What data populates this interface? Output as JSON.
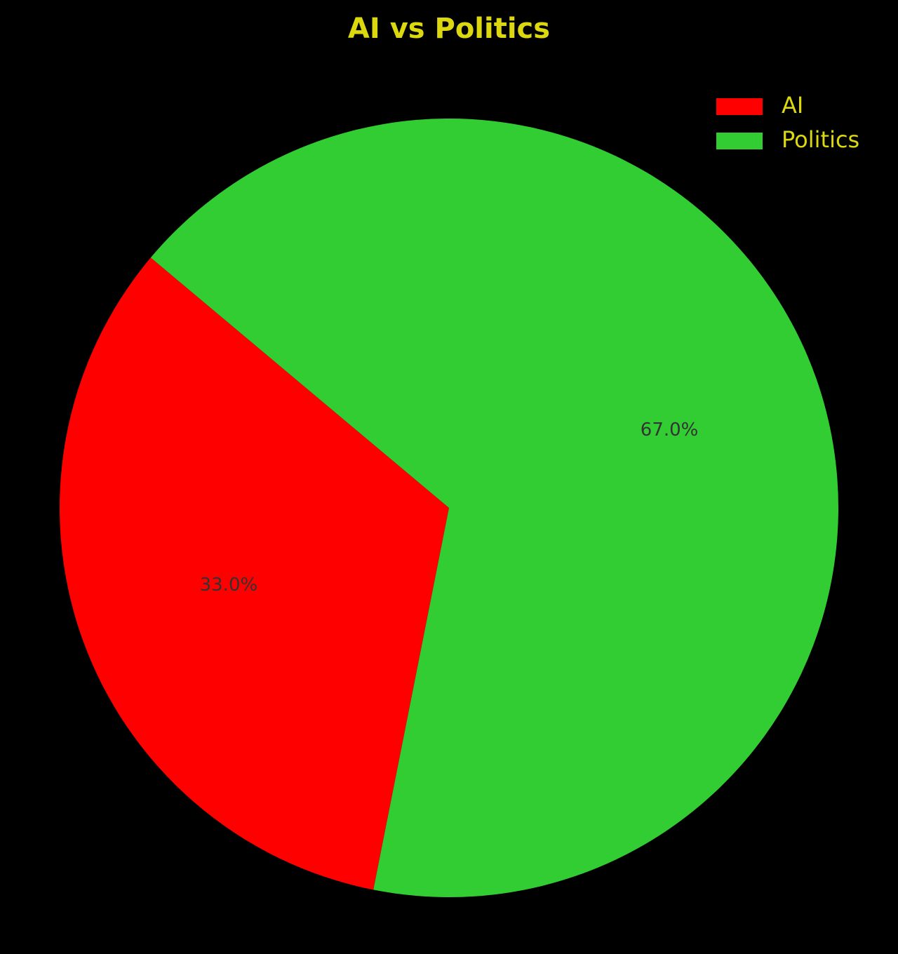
{
  "chart_data": {
    "type": "pie",
    "title": "AI vs Politics",
    "start_angle_deg": 140,
    "direction": "counterclockwise",
    "legend_position": "top-right",
    "slices": [
      {
        "label": "AI",
        "value": 33.0,
        "pct_label": "33.0%",
        "color": "#ff0000"
      },
      {
        "label": "Politics",
        "value": 67.0,
        "pct_label": "67.0%",
        "color": "#32cd32"
      }
    ]
  },
  "colors": {
    "background": "#000000",
    "title": "#dcd80f",
    "legend_text": "#dcd80f",
    "slice_label": "#333333"
  }
}
